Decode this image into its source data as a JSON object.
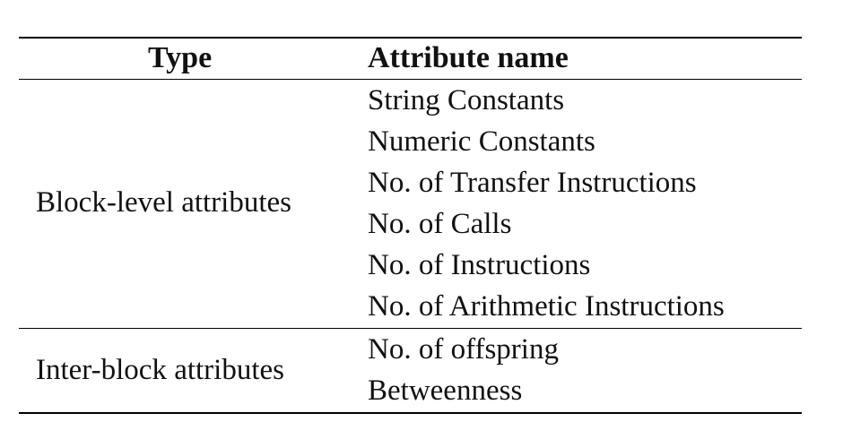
{
  "table": {
    "headers": {
      "type": "Type",
      "attribute_name": "Attribute name"
    },
    "groups": [
      {
        "type": "Block-level attributes",
        "attributes": [
          "String Constants",
          "Numeric Constants",
          "No. of Transfer Instructions",
          "No. of Calls",
          "No. of Instructions",
          "No. of Arithmetic Instructions"
        ]
      },
      {
        "type": "Inter-block attributes",
        "attributes": [
          "No. of offspring",
          "Betweenness"
        ]
      }
    ]
  }
}
